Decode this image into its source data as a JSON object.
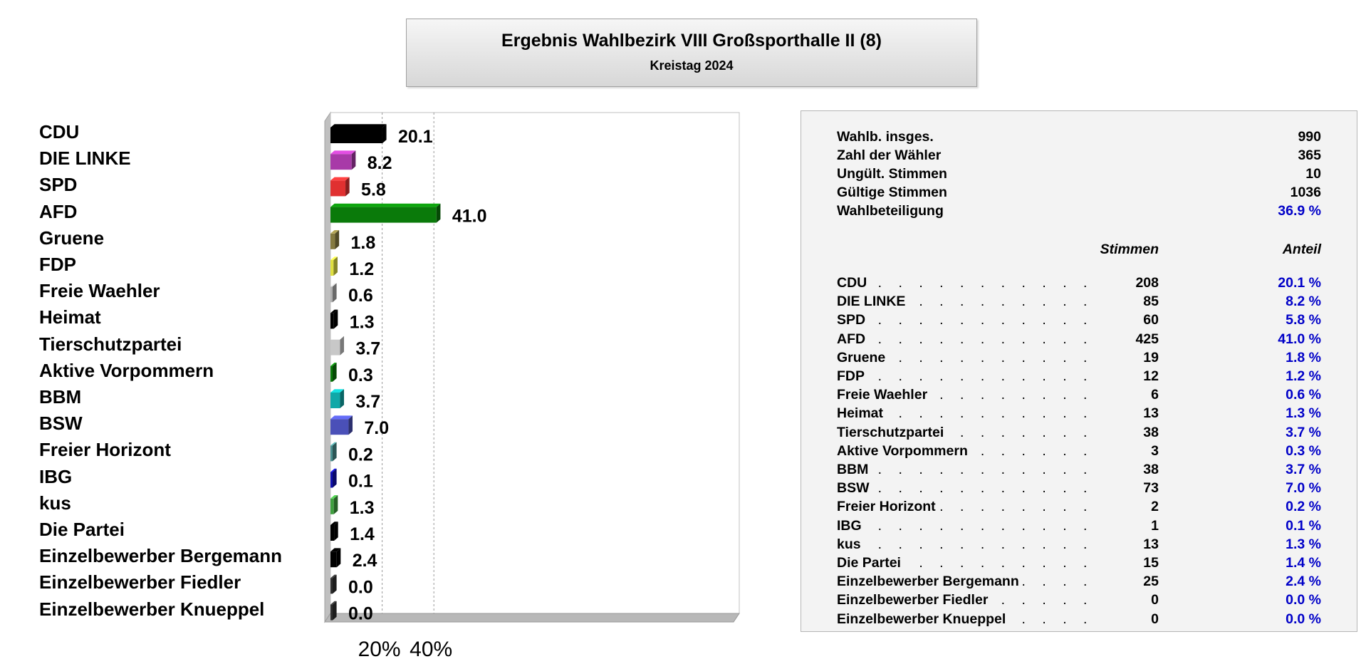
{
  "header": {
    "title": "Ergebnis Wahlbezirk VIII Großsporthalle II (8)",
    "subtitle": "Kreistag 2024"
  },
  "chart_data": {
    "type": "bar",
    "orientation": "horizontal",
    "categories": [
      "CDU",
      "DIE LINKE",
      "SPD",
      "AFD",
      "Gruene",
      "FDP",
      "Freie Waehler",
      "Heimat",
      "Tierschutzpartei",
      "Aktive Vorpommern",
      "BBM",
      "BSW",
      "Freier Horizont",
      "IBG",
      "kus",
      "Die Partei",
      "Einzelbewerber Bergemann",
      "Einzelbewerber Fiedler",
      "Einzelbewerber Knueppel"
    ],
    "values": [
      20.1,
      8.2,
      5.8,
      41.0,
      1.8,
      1.2,
      0.6,
      1.3,
      3.7,
      0.3,
      3.7,
      7.0,
      0.2,
      0.1,
      1.3,
      1.4,
      2.4,
      0.0,
      0.0
    ],
    "value_labels": [
      "20.1",
      "8.2",
      "5.8",
      "41.0",
      "1.8",
      "1.2",
      "0.6",
      "1.3",
      "3.7",
      "0.3",
      "3.7",
      "7.0",
      "0.2",
      "0.1",
      "1.3",
      "1.4",
      "2.4",
      "0.0",
      "0.0"
    ],
    "colors": [
      "#000000",
      "#a83aa8",
      "#e03030",
      "#0a7a0a",
      "#857a40",
      "#e0e040",
      "#b0b0b0",
      "#000000",
      "#c8c8c8",
      "#0a7a0a",
      "#10a8a8",
      "#4a50b8",
      "#4a9090",
      "#1010b0",
      "#40a040",
      "#000000",
      "#000000",
      "#303030",
      "#303030"
    ],
    "xlim": [
      0,
      60
    ],
    "xticks": [
      20,
      40
    ],
    "xtick_labels": [
      "20%",
      "40%"
    ],
    "grid": true
  },
  "stats": [
    {
      "label": "Wahlb. insges.",
      "value": "990"
    },
    {
      "label": "Zahl der Wähler",
      "value": "365"
    },
    {
      "label": "Ungült. Stimmen",
      "value": "10"
    },
    {
      "label": "Gültige Stimmen",
      "value": "1036"
    },
    {
      "label": "Wahlbeteiligung",
      "value": "36.9 %"
    }
  ],
  "table": {
    "col_votes": "Stimmen",
    "col_share": "Anteil",
    "rows": [
      {
        "party": "CDU",
        "votes": "208",
        "share": "20.1 %"
      },
      {
        "party": "DIE LINKE",
        "votes": "85",
        "share": "8.2 %"
      },
      {
        "party": "SPD",
        "votes": "60",
        "share": "5.8 %"
      },
      {
        "party": "AFD",
        "votes": "425",
        "share": "41.0 %"
      },
      {
        "party": "Gruene",
        "votes": "19",
        "share": "1.8 %"
      },
      {
        "party": "FDP",
        "votes": "12",
        "share": "1.2 %"
      },
      {
        "party": "Freie Waehler",
        "votes": "6",
        "share": "0.6 %"
      },
      {
        "party": "Heimat",
        "votes": "13",
        "share": "1.3 %"
      },
      {
        "party": "Tierschutzpartei",
        "votes": "38",
        "share": "3.7 %"
      },
      {
        "party": "Aktive Vorpommern",
        "votes": "3",
        "share": "0.3 %"
      },
      {
        "party": "BBM",
        "votes": "38",
        "share": "3.7 %"
      },
      {
        "party": "BSW",
        "votes": "73",
        "share": "7.0 %"
      },
      {
        "party": "Freier Horizont",
        "votes": "2",
        "share": "0.2 %"
      },
      {
        "party": "IBG",
        "votes": "1",
        "share": "0.1 %"
      },
      {
        "party": "kus",
        "votes": "13",
        "share": "1.3 %"
      },
      {
        "party": "Die Partei",
        "votes": "15",
        "share": "1.4 %"
      },
      {
        "party": "Einzelbewerber Bergemann",
        "votes": "25",
        "share": "2.4 %"
      },
      {
        "party": "Einzelbewerber Fiedler",
        "votes": "0",
        "share": "0.0 %"
      },
      {
        "party": "Einzelbewerber Knueppel",
        "votes": "0",
        "share": "0.0 %"
      }
    ]
  }
}
